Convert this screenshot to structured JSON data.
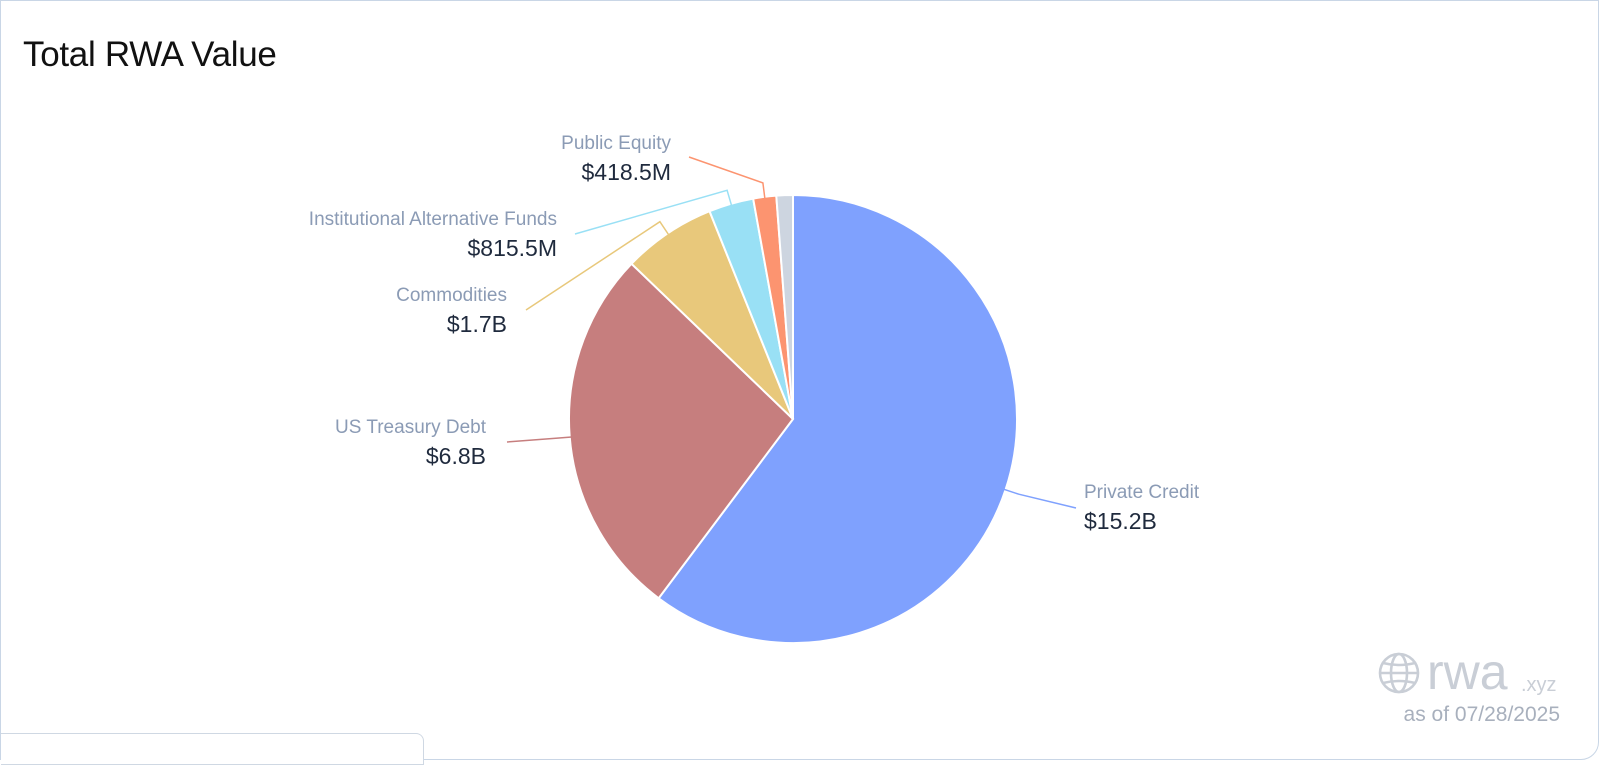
{
  "title": "Total RWA Value",
  "as_of": "as of 07/28/2025",
  "watermark": {
    "icon": "globe-icon",
    "brand": "rwa",
    "suffix": ".xyz"
  },
  "chart_data": {
    "type": "pie",
    "title": "Total RWA Value",
    "start": "12 o'clock, clockwise",
    "slices": [
      {
        "label": "Private Credit",
        "value_label": "$15.2B",
        "value": 15.2,
        "color": "#7fa1fe"
      },
      {
        "label": "US Treasury Debt",
        "value_label": "$6.8B",
        "value": 6.8,
        "color": "#c67e7e"
      },
      {
        "label": "Commodities",
        "value_label": "$1.7B",
        "value": 1.7,
        "color": "#e8c87b"
      },
      {
        "label": "Institutional Alternative Funds",
        "value_label": "$815.5M",
        "value": 0.8155,
        "color": "#99e0f5"
      },
      {
        "label": "Public Equity",
        "value_label": "$418.5M",
        "value": 0.4185,
        "color": "#fc9470"
      },
      {
        "label": "",
        "value_label": "",
        "value": 0.3,
        "color": "#cdd5e0"
      }
    ],
    "label_colors": {
      "name": "#8b9bb5",
      "value": "#1f2a3d"
    }
  }
}
